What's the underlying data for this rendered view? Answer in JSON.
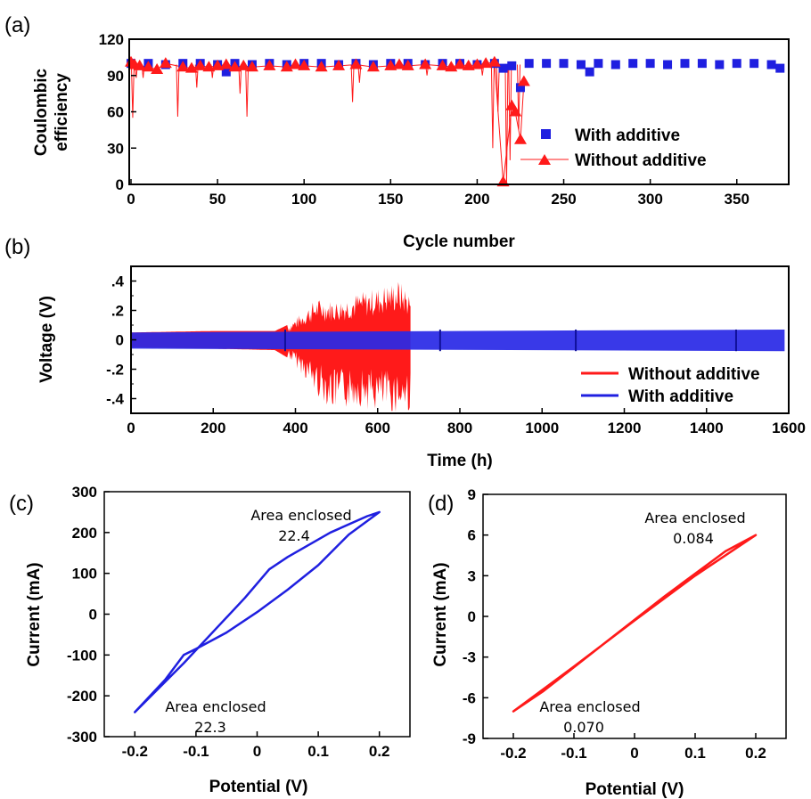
{
  "colors": {
    "with_additive": "#1f1fe0",
    "without_additive": "#ff1a1a"
  },
  "chart_data": [
    {
      "panel": "(a)",
      "type": "scatter",
      "xlabel": "Cycle number",
      "ylabel_lines": [
        "Coulombic",
        "efficiency"
      ],
      "xlim": [
        0,
        380
      ],
      "ylim": [
        0,
        120
      ],
      "xticks": [
        0,
        50,
        100,
        150,
        200,
        250,
        300,
        350
      ],
      "yticks": [
        0,
        30,
        60,
        90,
        120
      ],
      "legend_position": "right",
      "series": [
        {
          "name": "With additive",
          "marker": "square",
          "x": [
            0,
            10,
            20,
            30,
            40,
            50,
            55,
            60,
            70,
            80,
            90,
            100,
            110,
            120,
            130,
            140,
            150,
            160,
            170,
            180,
            190,
            200,
            210,
            215,
            220,
            225,
            230,
            240,
            250,
            260,
            265,
            270,
            280,
            290,
            300,
            310,
            320,
            330,
            340,
            350,
            360,
            370,
            375
          ],
          "values": [
            100,
            100,
            99,
            100,
            100,
            99,
            93,
            100,
            99,
            100,
            99,
            100,
            100,
            99,
            100,
            99,
            100,
            100,
            99,
            100,
            100,
            99,
            100,
            96,
            98,
            80,
            100,
            100,
            100,
            99,
            93,
            100,
            99,
            100,
            100,
            99,
            100,
            100,
            99,
            100,
            100,
            99,
            96
          ]
        },
        {
          "name": "Without additive",
          "marker": "triangle",
          "x": [
            0,
            2,
            5,
            10,
            15,
            20,
            30,
            35,
            40,
            45,
            50,
            55,
            60,
            65,
            70,
            80,
            90,
            95,
            100,
            110,
            120,
            130,
            140,
            150,
            155,
            160,
            170,
            180,
            185,
            190,
            195,
            200,
            205,
            210,
            215,
            220,
            222,
            225,
            227
          ],
          "values": [
            101,
            99,
            98,
            97,
            95,
            100,
            97,
            96,
            98,
            97,
            98,
            99,
            97,
            98,
            97,
            98,
            97,
            99,
            98,
            97,
            98,
            99,
            97,
            98,
            99,
            98,
            99,
            98,
            97,
            99,
            98,
            99,
            100,
            101,
            2,
            65,
            60,
            37,
            85
          ]
        }
      ],
      "spikes_without_additive": [
        {
          "x": 1,
          "y": 55
        },
        {
          "x": 3,
          "y": 88
        },
        {
          "x": 7,
          "y": 88
        },
        {
          "x": 27,
          "y": 56
        },
        {
          "x": 38,
          "y": 80
        },
        {
          "x": 47,
          "y": 88
        },
        {
          "x": 63,
          "y": 75
        },
        {
          "x": 67,
          "y": 56
        },
        {
          "x": 128,
          "y": 68
        },
        {
          "x": 132,
          "y": 84
        },
        {
          "x": 171,
          "y": 90
        },
        {
          "x": 203,
          "y": 90
        },
        {
          "x": 209,
          "y": 30
        },
        {
          "x": 212,
          "y": 60
        },
        {
          "x": 217,
          "y": 0
        },
        {
          "x": 219,
          "y": 20
        },
        {
          "x": 224,
          "y": 45
        }
      ]
    },
    {
      "panel": "(b)",
      "type": "line",
      "xlabel": "Time (h)",
      "ylabel": "Voltage (V)",
      "xlim": [
        0,
        1600
      ],
      "ylim": [
        -0.5,
        0.5
      ],
      "xticks": [
        0,
        200,
        400,
        600,
        800,
        1000,
        1200,
        1400,
        1600
      ],
      "yticks": [
        -0.4,
        -0.2,
        0,
        0.2,
        0.4
      ],
      "legend_position": "bottom-right",
      "series": [
        {
          "name": "Without additive",
          "t_end": 680,
          "envelope_t": [
            0,
            200,
            350,
            380,
            420,
            450,
            500,
            550,
            600,
            650,
            680
          ],
          "envelope_upper": [
            0.05,
            0.06,
            0.06,
            0.1,
            0.2,
            0.28,
            0.27,
            0.32,
            0.36,
            0.41,
            0.33
          ],
          "envelope_lower": [
            -0.05,
            -0.06,
            -0.07,
            -0.12,
            -0.25,
            -0.38,
            -0.5,
            -0.45,
            -0.5,
            -0.5,
            -0.5
          ]
        },
        {
          "name": "With additive",
          "t_end": 1590,
          "amplitude": 0.07,
          "markers_t": [
            375,
            752,
            1082,
            1472
          ]
        }
      ]
    },
    {
      "panel": "(c)",
      "type": "line",
      "xlabel": "Potential (V)",
      "ylabel": "Current (mA)",
      "xlim": [
        -0.25,
        0.25
      ],
      "ylim": [
        -300,
        300
      ],
      "xticks": [
        -0.2,
        -0.1,
        0,
        0.1,
        0.2
      ],
      "yticks": [
        -300,
        -200,
        -100,
        0,
        100,
        200,
        300
      ],
      "series": [
        {
          "name": "With additive",
          "color": "#1f1fe0",
          "x": [
            -0.2,
            -0.15,
            -0.12,
            -0.1,
            -0.05,
            0,
            0.05,
            0.1,
            0.15,
            0.2,
            0.18,
            0.12,
            0.05,
            0.02,
            -0.02,
            -0.07,
            -0.12,
            -0.17,
            -0.2
          ],
          "y": [
            -240,
            -160,
            -100,
            -85,
            -45,
            5,
            60,
            120,
            195,
            250,
            240,
            200,
            140,
            110,
            40,
            -40,
            -120,
            -195,
            -240
          ]
        }
      ],
      "annotations": [
        {
          "label": "Area enclosed",
          "value": "22.4"
        },
        {
          "label": "Area enclosed",
          "value": "22.3"
        }
      ]
    },
    {
      "panel": "(d)",
      "type": "line",
      "xlabel": "Potential (V)",
      "ylabel": "Current (mA)",
      "xlim": [
        -0.25,
        0.25
      ],
      "ylim": [
        -9,
        9
      ],
      "xticks": [
        -0.2,
        -0.1,
        0,
        0.1,
        0.2
      ],
      "yticks": [
        -9,
        -6,
        -3,
        0,
        3,
        6,
        9
      ],
      "series": [
        {
          "name": "Without additive",
          "color": "#ff1a1a",
          "x": [
            -0.2,
            -0.1,
            0,
            0.1,
            0.2,
            0.15,
            0.05,
            -0.05,
            -0.15,
            -0.2
          ],
          "y": [
            -7,
            -3.7,
            -0.3,
            3.0,
            6.0,
            4.8,
            1.5,
            -2.0,
            -5.5,
            -7
          ]
        }
      ],
      "annotations": [
        {
          "label": "Area enclosed",
          "value": "0.084"
        },
        {
          "label": "Area enclosed",
          "value": "0.070"
        }
      ]
    }
  ]
}
